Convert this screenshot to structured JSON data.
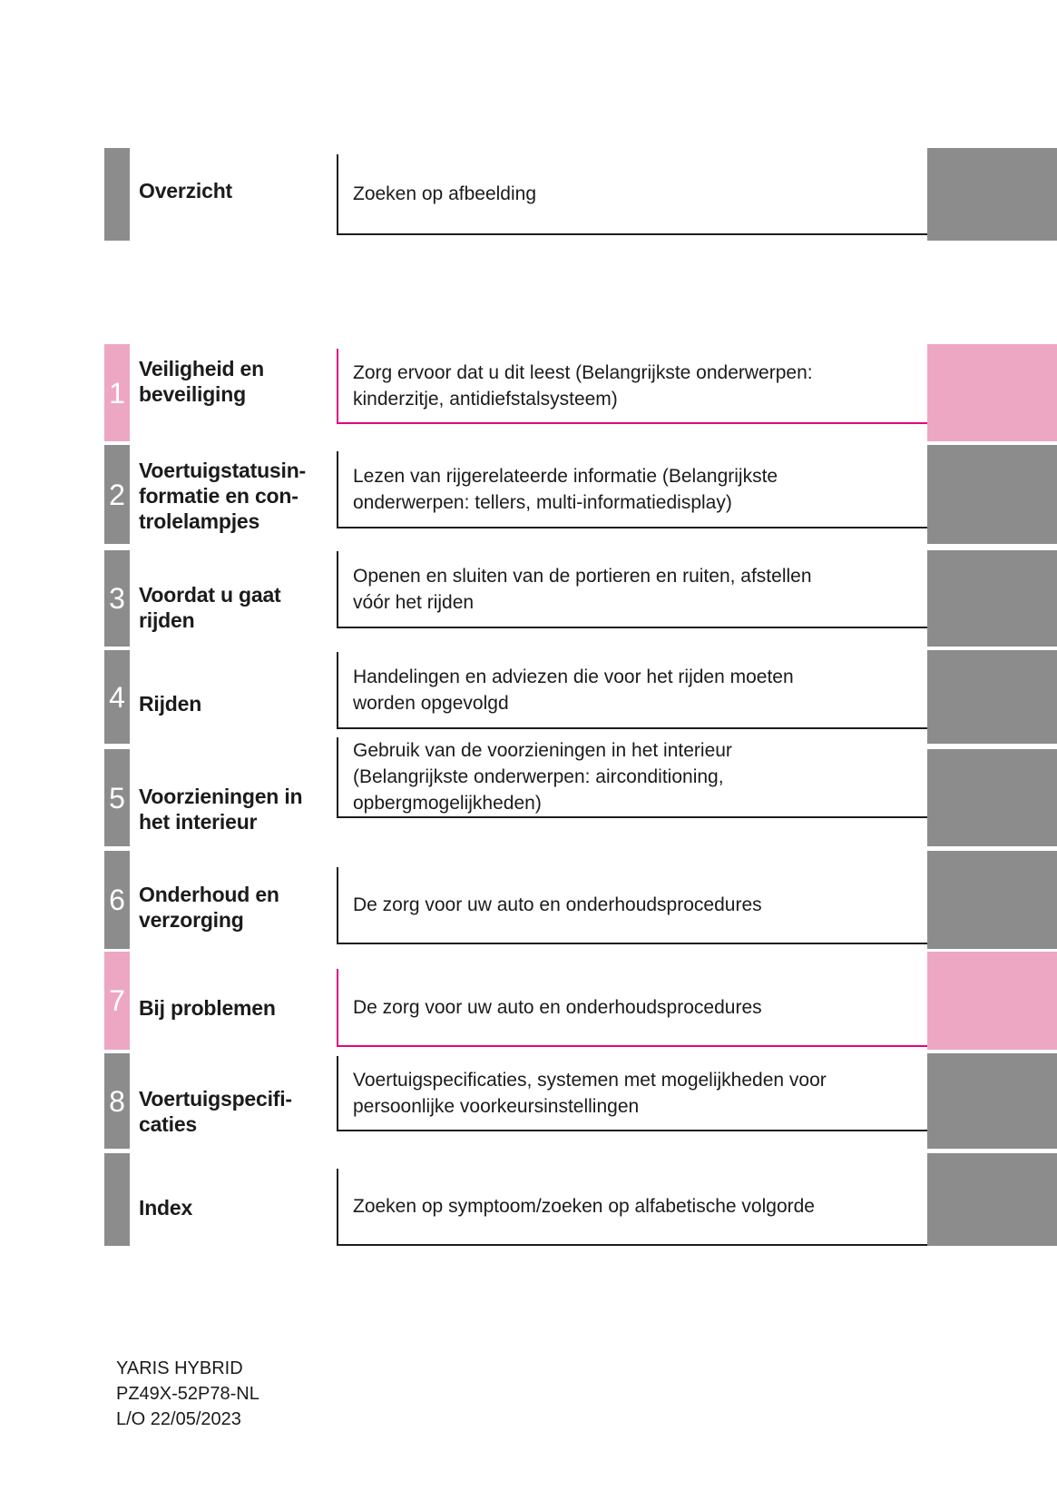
{
  "sections": [
    {
      "number": "",
      "label": "Overzicht",
      "description": "Zoeken op afbeelding",
      "accent": "gray"
    },
    {
      "number": "1",
      "label": "Veiligheid en\nbeveiliging",
      "description": "Zorg ervoor dat u dit leest (Belangrijkste onderwerpen:\nkinderzitje, antidiefstalsysteem)",
      "accent": "pink"
    },
    {
      "number": "2",
      "label": "Voertuigstatusin-\nformatie en con-\ntrolelampjes",
      "description": "Lezen van rijgerelateerde informatie (Belangrijkste\nonderwerpen: tellers, multi-informatiedisplay)",
      "accent": "gray"
    },
    {
      "number": "3",
      "label": "Voordat u gaat\nrijden",
      "description": "Openen en sluiten van de portieren en ruiten, afstellen\nvóór het rijden",
      "accent": "gray"
    },
    {
      "number": "4",
      "label": "Rijden",
      "description": "Handelingen en adviezen die voor het rijden moeten\nworden opgevolgd",
      "accent": "gray"
    },
    {
      "number": "5",
      "label": "Voorzieningen in\nhet interieur",
      "description": "Gebruik van de voorzieningen in het interieur\n(Belangrijkste onderwerpen: airconditioning,\nopbergmogelijkheden)",
      "accent": "gray"
    },
    {
      "number": "6",
      "label": "Onderhoud en\nverzorging",
      "description": "De zorg voor uw auto en onderhoudsprocedures",
      "accent": "gray"
    },
    {
      "number": "7",
      "label": "Bij problemen",
      "description": "De zorg voor uw auto en onderhoudsprocedures",
      "accent": "pink"
    },
    {
      "number": "8",
      "label": "Voertuigspecifi-\ncaties",
      "description": "Voertuigspecificaties, systemen met mogelijkheden voor\npersoonlijke voorkeursinstellingen",
      "accent": "gray"
    },
    {
      "number": "",
      "label": "Index",
      "description": "Zoeken op symptoom/zoeken op alfabetische volgorde",
      "accent": "gray"
    }
  ],
  "footer": {
    "model": "YARIS HYBRID",
    "part_number": "PZ49X-52P78-NL",
    "layout_date": "L/O 22/05/2023"
  },
  "colors": {
    "gray": "#8c8c8c",
    "pink": "#eda7c2",
    "magenta_border": "#e2057e",
    "box_border": "#1d1d1d",
    "text": "#1b1b1b"
  }
}
